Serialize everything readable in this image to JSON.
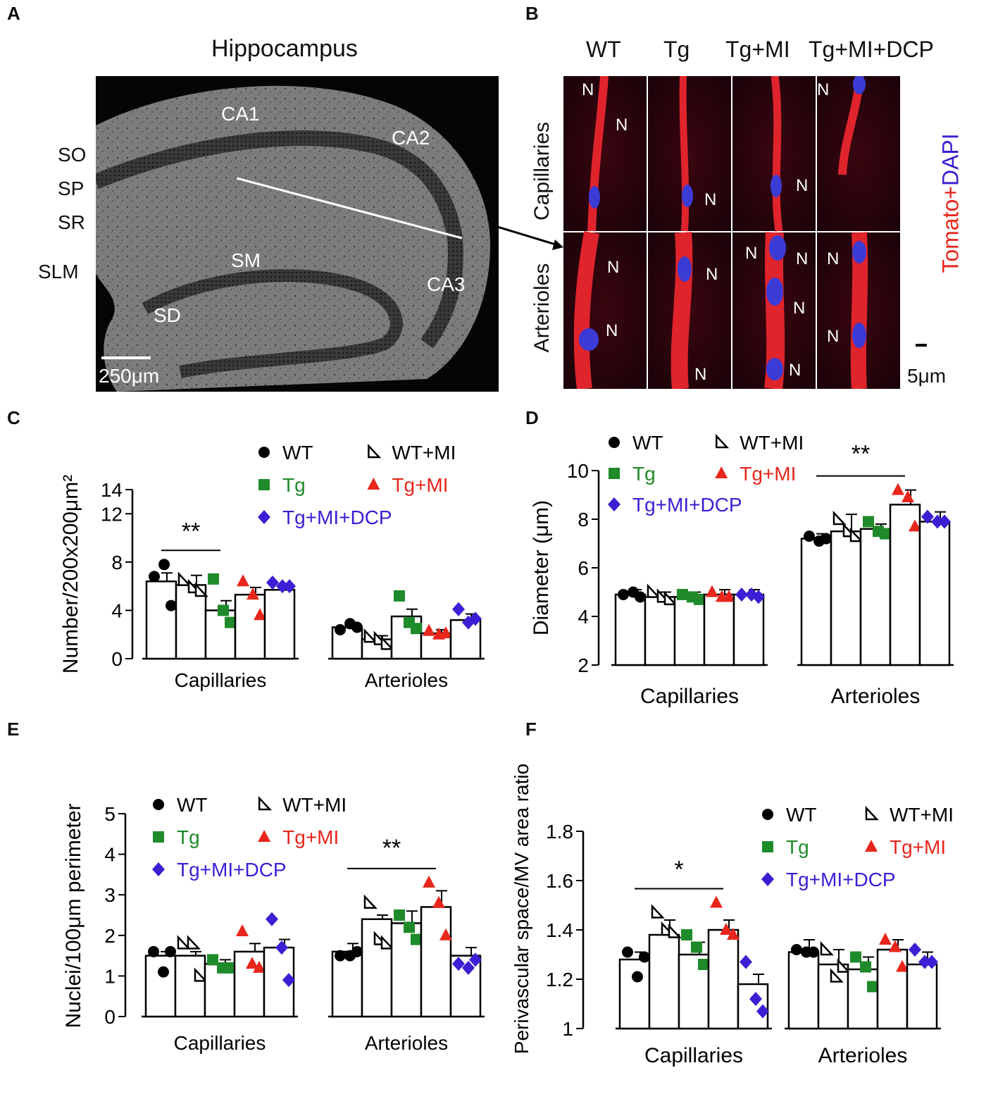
{
  "panel_letters": {
    "A": "A",
    "B": "B",
    "C": "C",
    "D": "D",
    "E": "E",
    "F": "F"
  },
  "panel_A": {
    "title": "Hippocampus",
    "layers": [
      "SO",
      "SP",
      "SR",
      "SLM"
    ],
    "regions": [
      "CA1",
      "CA2",
      "CA3",
      "SM",
      "SD"
    ],
    "scale_bar": "250μm"
  },
  "panel_B": {
    "columns": [
      "WT",
      "Tg",
      "Tg+MI",
      "Tg+MI+DCP"
    ],
    "rows": [
      "Capillaries",
      "Arterioles"
    ],
    "nucleus_marker": "N",
    "stain_red": "Tomato",
    "stain_plus": "+",
    "stain_blue": "DAPI",
    "scale_bar": "5μm"
  },
  "groups": [
    {
      "key": "WT",
      "label": "WT",
      "color": "#000000",
      "marker": "circle"
    },
    {
      "key": "WTMI",
      "label": "WT+MI",
      "color": "#000000",
      "marker": "half-triangle"
    },
    {
      "key": "Tg",
      "label": "Tg",
      "color": "#1f8a2a",
      "marker": "square"
    },
    {
      "key": "TgMI",
      "label": "Tg+MI",
      "color": "#e8261c",
      "marker": "triangle"
    },
    {
      "key": "TgMIDCP",
      "label": "Tg+MI+DCP",
      "color": "#3b1fd4",
      "marker": "diamond"
    }
  ],
  "chart_data": [
    {
      "panel": "C",
      "type": "bar",
      "ylabel": "Number/200x200μm²",
      "ylim": [
        0,
        14
      ],
      "yticks": [
        0,
        4,
        8,
        12,
        14
      ],
      "categories": [
        "Capillaries",
        "Arterioles"
      ],
      "series": [
        {
          "name": "WT",
          "values": [
            6.4,
            2.6
          ],
          "errors": [
            0.7,
            0.3
          ],
          "points": [
            [
              6.8,
              7.8,
              4.4
            ],
            [
              2.4,
              2.9,
              2.6
            ]
          ]
        },
        {
          "name": "WT+MI",
          "values": [
            6.1,
            1.6
          ],
          "errors": [
            0.8,
            0.3
          ],
          "points": [
            [
              6.5,
              5.9,
              5.6
            ],
            [
              1.8,
              1.6,
              1.2
            ]
          ]
        },
        {
          "name": "Tg",
          "values": [
            4.0,
            3.5
          ],
          "errors": [
            0.8,
            0.6
          ],
          "points": [
            [
              6.6,
              4.0,
              3.0
            ],
            [
              5.2,
              3.0,
              2.5
            ]
          ]
        },
        {
          "name": "Tg+MI",
          "values": [
            5.3,
            2.1
          ],
          "errors": [
            0.6,
            0.3
          ],
          "points": [
            [
              6.4,
              5.3,
              3.6
            ],
            [
              2.3,
              2.0,
              2.1
            ]
          ]
        },
        {
          "name": "Tg+MI+DCP",
          "values": [
            5.7,
            3.2
          ],
          "errors": [
            0.5,
            0.5
          ],
          "points": [
            [
              6.3,
              6.0,
              6.0
            ],
            [
              4.1,
              3.0,
              3.3
            ]
          ]
        }
      ],
      "significance": [
        {
          "category": "Capillaries",
          "from": 0,
          "to": 2,
          "label": "**"
        }
      ]
    },
    {
      "panel": "D",
      "type": "bar",
      "ylabel": "Diameter (μm)",
      "ylim": [
        2,
        10
      ],
      "yticks": [
        2,
        4,
        6,
        8,
        10
      ],
      "categories": [
        "Capillaries",
        "Arterioles"
      ],
      "series": [
        {
          "name": "WT",
          "values": [
            4.9,
            7.2
          ],
          "errors": [
            0.2,
            0.2
          ],
          "points": [
            [
              4.9,
              5.0,
              4.8
            ],
            [
              7.3,
              7.1,
              7.2
            ]
          ]
        },
        {
          "name": "WT+MI",
          "values": [
            4.8,
            7.5
          ],
          "errors": [
            0.2,
            0.7
          ],
          "points": [
            [
              5.0,
              4.8,
              4.7
            ],
            [
              8.0,
              7.5,
              7.3
            ]
          ]
        },
        {
          "name": "Tg",
          "values": [
            4.8,
            7.6
          ],
          "errors": [
            0.2,
            0.2
          ],
          "points": [
            [
              4.9,
              4.8,
              4.7
            ],
            [
              7.9,
              7.5,
              7.4
            ]
          ]
        },
        {
          "name": "Tg+MI",
          "values": [
            4.9,
            8.6
          ],
          "errors": [
            0.2,
            0.6
          ],
          "points": [
            [
              5.0,
              4.8,
              4.8
            ],
            [
              9.2,
              8.9,
              7.7
            ]
          ]
        },
        {
          "name": "Tg+MI+DCP",
          "values": [
            4.9,
            7.9
          ],
          "errors": [
            0.2,
            0.4
          ],
          "points": [
            [
              4.9,
              4.9,
              4.8
            ],
            [
              8.1,
              7.9,
              7.9
            ]
          ]
        }
      ],
      "significance": [
        {
          "category": "Arterioles",
          "from": 0,
          "to": 3,
          "label": "**"
        }
      ]
    },
    {
      "panel": "E",
      "type": "bar",
      "ylabel": "Nuclei/100μm perimeter",
      "ylim": [
        0,
        5
      ],
      "yticks": [
        0,
        1,
        2,
        3,
        4,
        5
      ],
      "categories": [
        "Capillaries",
        "Arterioles"
      ],
      "series": [
        {
          "name": "WT",
          "values": [
            1.5,
            1.6
          ],
          "errors": [
            0.1,
            0.2
          ],
          "points": [
            [
              1.6,
              1.1,
              1.6
            ],
            [
              1.5,
              1.5,
              1.6
            ]
          ]
        },
        {
          "name": "WT+MI",
          "values": [
            1.5,
            2.4
          ],
          "errors": [
            0.1,
            0.1
          ],
          "points": [
            [
              1.8,
              1.8,
              1.0
            ],
            [
              2.8,
              1.9,
              1.8
            ]
          ]
        },
        {
          "name": "Tg",
          "values": [
            1.3,
            2.3
          ],
          "errors": [
            0.1,
            0.3
          ],
          "points": [
            [
              1.4,
              1.2,
              1.2
            ],
            [
              2.5,
              2.2,
              1.9
            ]
          ]
        },
        {
          "name": "Tg+MI",
          "values": [
            1.6,
            2.7
          ],
          "errors": [
            0.2,
            0.4
          ],
          "points": [
            [
              2.1,
              1.3,
              1.2
            ],
            [
              3.3,
              2.8,
              2.0
            ]
          ]
        },
        {
          "name": "Tg+MI+DCP",
          "values": [
            1.7,
            1.5
          ],
          "errors": [
            0.2,
            0.2
          ],
          "points": [
            [
              2.4,
              1.7,
              0.9
            ],
            [
              1.3,
              1.2,
              1.4
            ]
          ]
        }
      ],
      "significance": [
        {
          "category": "Arterioles",
          "from": 0,
          "to": 3,
          "label": "**"
        }
      ]
    },
    {
      "panel": "F",
      "type": "bar",
      "ylabel": "Perivascular space/MV area ratio",
      "ylim": [
        1.0,
        1.8
      ],
      "yticks": [
        1.0,
        1.2,
        1.4,
        1.6,
        1.8
      ],
      "categories": [
        "Capillaries",
        "Arterioles"
      ],
      "series": [
        {
          "name": "WT",
          "values": [
            1.28,
            1.31
          ],
          "errors": [
            0.03,
            0.05
          ],
          "points": [
            [
              1.31,
              1.21,
              1.29
            ],
            [
              1.32,
              1.31,
              1.31
            ]
          ]
        },
        {
          "name": "WT+MI",
          "values": [
            1.38,
            1.26
          ],
          "errors": [
            0.06,
            0.06
          ],
          "points": [
            [
              1.47,
              1.4,
              1.39
            ],
            [
              1.32,
              1.21,
              1.25
            ]
          ]
        },
        {
          "name": "Tg",
          "values": [
            1.3,
            1.24
          ],
          "errors": [
            0.05,
            0.05
          ],
          "points": [
            [
              1.38,
              1.33,
              1.26
            ],
            [
              1.29,
              1.25,
              1.17
            ]
          ]
        },
        {
          "name": "Tg+MI",
          "values": [
            1.4,
            1.32
          ],
          "errors": [
            0.04,
            0.04
          ],
          "points": [
            [
              1.51,
              1.4,
              1.38
            ],
            [
              1.36,
              1.33,
              1.25
            ]
          ]
        },
        {
          "name": "Tg+MI+DCP",
          "values": [
            1.18,
            1.26
          ],
          "errors": [
            0.04,
            0.05
          ],
          "points": [
            [
              1.27,
              1.12,
              1.07
            ],
            [
              1.32,
              1.27,
              1.27
            ]
          ]
        }
      ],
      "significance": [
        {
          "category": "Capillaries",
          "from": 0,
          "to": 3,
          "label": "*"
        }
      ]
    }
  ]
}
